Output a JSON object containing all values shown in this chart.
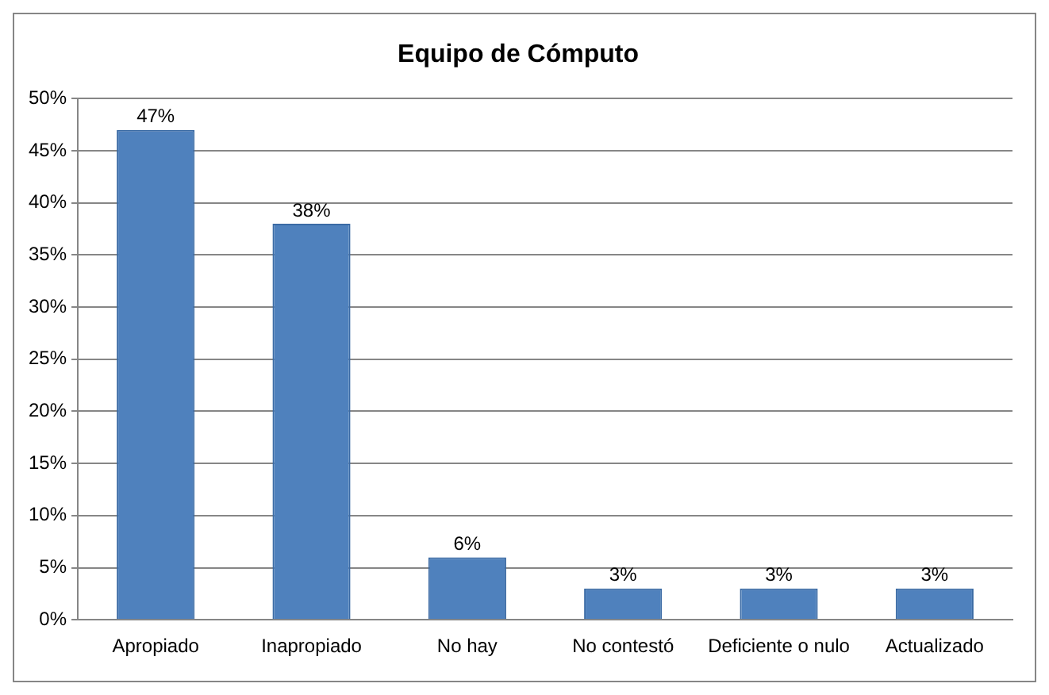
{
  "chart_data": {
    "type": "bar",
    "title": "Equipo de Cómputo",
    "categories": [
      "Apropiado",
      "Inapropiado",
      "No hay",
      "No contestó",
      "Deficiente o nulo",
      "Actualizado"
    ],
    "values": [
      47,
      38,
      6,
      3,
      3,
      3
    ],
    "color": "#4f81bd",
    "value_labels": [
      "47%",
      "38%",
      "6%",
      "3%",
      "3%",
      "3%"
    ],
    "ylim": [
      0,
      50
    ],
    "yticks": [
      {
        "value": 0,
        "label": "0%"
      },
      {
        "value": 5,
        "label": "5%"
      },
      {
        "value": 10,
        "label": "10%"
      },
      {
        "value": 15,
        "label": "15%"
      },
      {
        "value": 20,
        "label": "20%"
      },
      {
        "value": 25,
        "label": "25%"
      },
      {
        "value": 30,
        "label": "30%"
      },
      {
        "value": 35,
        "label": "35%"
      },
      {
        "value": 40,
        "label": "40%"
      },
      {
        "value": 45,
        "label": "45%"
      },
      {
        "value": 50,
        "label": "50%"
      }
    ],
    "grid": "y",
    "legend": false
  }
}
